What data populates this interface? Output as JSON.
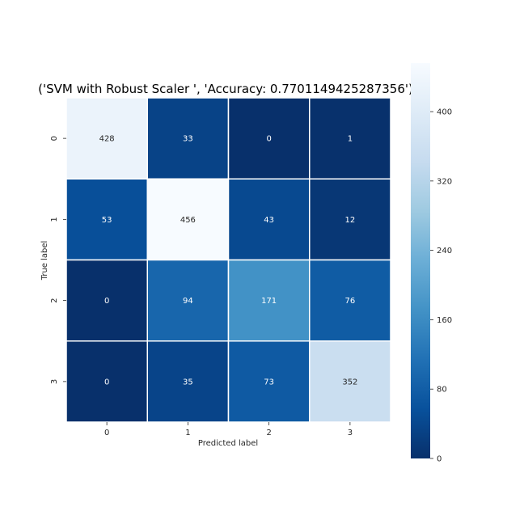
{
  "chart_data": {
    "type": "heatmap",
    "title": "('SVM with Robust Scaler ', 'Accuracy: 0.7701149425287356')",
    "xlabel": "Predicted label",
    "ylabel": "True label",
    "x_categories": [
      "0",
      "1",
      "2",
      "3"
    ],
    "y_categories": [
      "0",
      "1",
      "2",
      "3"
    ],
    "matrix": [
      [
        428,
        33,
        0,
        1
      ],
      [
        53,
        456,
        43,
        12
      ],
      [
        0,
        94,
        171,
        76
      ],
      [
        0,
        35,
        73,
        352
      ]
    ],
    "colormap": "Blues_r",
    "vmin": 0,
    "vmax": 456,
    "colorbar_ticks": [
      0,
      80,
      160,
      240,
      320,
      400
    ],
    "colorbar_tick_labels": [
      "0",
      "80",
      "160",
      "240",
      "320",
      "400"
    ],
    "annotation_colors": {
      "on_dark": "#ffffff",
      "on_light": "#262626"
    }
  }
}
